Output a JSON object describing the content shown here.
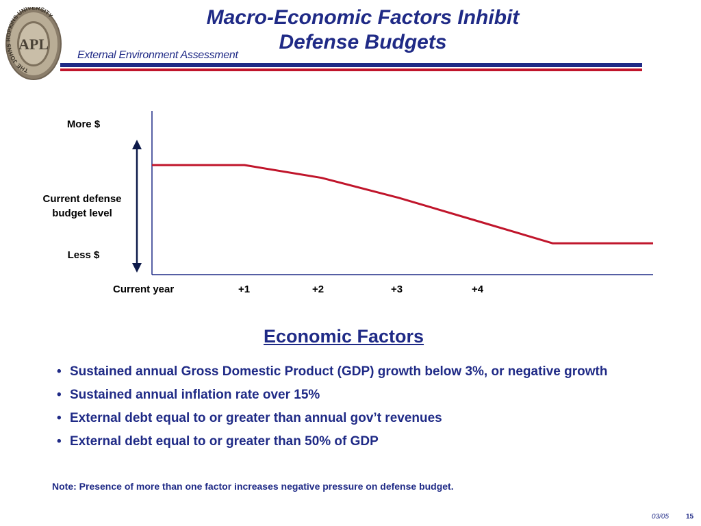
{
  "header": {
    "title_line1": "Macro-Economic Factors Inhibit",
    "title_line2": "Defense Budgets",
    "subtitle": "External Environment Assessment",
    "seal_text": "THE JOHNS HOPKINS UNIVERSITY",
    "seal_monogram": "APL"
  },
  "colors": {
    "navy": "#1f2a86",
    "red": "#c0152b",
    "line": "#c0152b",
    "axis": "#1f2a86"
  },
  "chart_data": {
    "type": "line",
    "title": "",
    "xlabel": "",
    "ylabel": "",
    "x_tick_labels": [
      "Current year",
      "+1",
      "+2",
      "+3",
      "+4"
    ],
    "y_tick_labels": [
      "More $",
      "Current defense budget level",
      "Less $"
    ],
    "series": [
      {
        "x": [
          0,
          1.2,
          2.2,
          3.2,
          4.2,
          5.2,
          6.5
        ],
        "y": [
          0.62,
          0.62,
          0.53,
          0.39,
          0.23,
          0.07,
          0.07
        ]
      }
    ],
    "xlim": [
      0,
      6.5
    ],
    "ylim": [
      -0.15,
      1
    ],
    "grid": false,
    "legend": "none"
  },
  "main": {
    "heading": "Economic Factors",
    "bullets": [
      "Sustained annual Gross Domestic Product (GDP) growth below 3%, or negative growth",
      "Sustained annual inflation rate over 15%",
      "External debt equal to or greater than annual gov’t revenues",
      "External debt equal to or greater than 50% of GDP"
    ],
    "bullet_marker": "•",
    "note": "Note:  Presence of more than one factor increases negative pressure on defense budget."
  },
  "footer": {
    "date": "03/05",
    "page": "15"
  }
}
